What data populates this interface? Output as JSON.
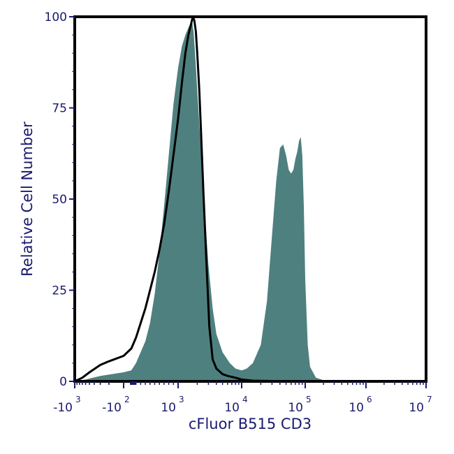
{
  "chart_data": {
    "type": "area",
    "xlabel": "cFluor B515 CD3",
    "ylabel": "Relative Cell Number",
    "x_scale": "biexponential",
    "xlim": [
      -1000,
      10000000
    ],
    "ylim": [
      0,
      100
    ],
    "grid": false,
    "y_ticks": [
      {
        "value": 0,
        "label": "0"
      },
      {
        "value": 25,
        "label": "25"
      },
      {
        "value": 50,
        "label": "50"
      },
      {
        "value": 75,
        "label": "75"
      },
      {
        "value": 100,
        "label": "100"
      }
    ],
    "x_ticks": [
      {
        "value": -1000,
        "label": "-10",
        "exp": "3"
      },
      {
        "value": -100,
        "label": "-10",
        "exp": "2"
      },
      {
        "value": 1000,
        "label": "10",
        "exp": "3"
      },
      {
        "value": 10000,
        "label": "10",
        "exp": "4"
      },
      {
        "value": 100000,
        "label": "10",
        "exp": "5"
      },
      {
        "value": 1000000,
        "label": "10",
        "exp": "6"
      },
      {
        "value": 10000000,
        "label": "10",
        "exp": "7"
      }
    ],
    "series": [
      {
        "style": "filled",
        "color": "#4f8080",
        "x": [
          -1000,
          -600,
          -300,
          -100,
          0,
          100,
          200,
          300,
          400,
          500,
          600,
          700,
          800,
          900,
          1000,
          1150,
          1300,
          1450,
          1550,
          1650,
          1750,
          1850,
          2000,
          2200,
          2500,
          3000,
          3500,
          4000,
          5000,
          6500,
          8000,
          10000,
          12000,
          15000,
          20000,
          25000,
          30000,
          35000,
          40000,
          45000,
          50000,
          55000,
          60000,
          65000,
          70000,
          75000,
          80000,
          85000,
          90000,
          95000,
          100000,
          110000,
          120000,
          150000,
          200000,
          300000,
          1000000,
          10000000
        ],
        "values": [
          0,
          0.5,
          1.5,
          2.5,
          3,
          5,
          8,
          11,
          16,
          24,
          35,
          48,
          62,
          76,
          86,
          92,
          95,
          97,
          98,
          99,
          96,
          90,
          80,
          68,
          52,
          32,
          20,
          13,
          8,
          5,
          3.5,
          3,
          3.5,
          5,
          10,
          22,
          40,
          55,
          64,
          65,
          62,
          58,
          57,
          58,
          61,
          63,
          66,
          67,
          62,
          48,
          28,
          10,
          4,
          1,
          0.3,
          0,
          0,
          0
        ]
      },
      {
        "style": "outline",
        "color": "#000000",
        "x": [
          -1000,
          -700,
          -500,
          -300,
          -200,
          -100,
          0,
          100,
          200,
          300,
          400,
          500,
          600,
          700,
          800,
          900,
          1000,
          1150,
          1300,
          1450,
          1600,
          1700,
          1800,
          1900,
          2000,
          2150,
          2300,
          2500,
          2800,
          3100,
          3500,
          4000,
          5000,
          6000,
          8000,
          10000,
          15000,
          30000,
          100000,
          1000000,
          10000000
        ],
        "values": [
          0,
          1,
          2.5,
          4.5,
          5.5,
          7,
          9,
          12,
          16,
          20,
          25,
          30,
          36,
          43,
          52,
          62,
          72,
          82,
          90,
          95,
          98,
          100,
          99,
          96,
          90,
          80,
          68,
          52,
          32,
          15,
          6,
          3.5,
          2,
          1.5,
          1,
          0.5,
          0.2,
          0.1,
          0,
          0,
          0
        ]
      }
    ]
  }
}
